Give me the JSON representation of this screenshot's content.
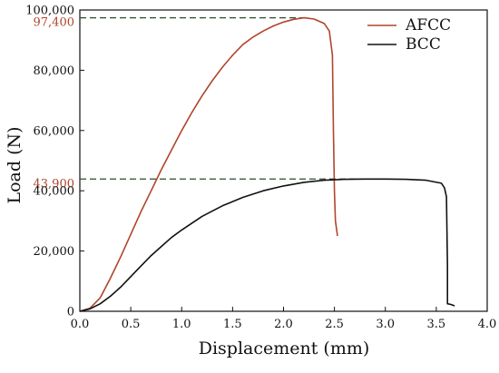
{
  "chart_data": {
    "type": "line",
    "xlabel": "Displacement (mm)",
    "ylabel": "Load (N)",
    "xlim": [
      0,
      4.0
    ],
    "ylim": [
      0,
      100000
    ],
    "x_ticks": [
      0.0,
      0.5,
      1.0,
      1.5,
      2.0,
      2.5,
      3.0,
      3.5,
      4.0
    ],
    "x_tick_labels": [
      "0.0",
      "0.5",
      "1.0",
      "1.5",
      "2.0",
      "2.5",
      "3.0",
      "3.5",
      "4.0"
    ],
    "y_ticks": [
      0,
      20000,
      40000,
      60000,
      80000,
      100000
    ],
    "y_tick_labels": [
      "0",
      "20,000",
      "40,000",
      "60,000",
      "80,000",
      "100,000"
    ],
    "grid": false,
    "legend_position": "top-right",
    "series": [
      {
        "name": "AFCC",
        "color": "#b0452c",
        "points": [
          [
            0.0,
            0
          ],
          [
            0.1,
            1000
          ],
          [
            0.2,
            4500
          ],
          [
            0.3,
            11000
          ],
          [
            0.4,
            18000
          ],
          [
            0.5,
            25500
          ],
          [
            0.6,
            33000
          ],
          [
            0.7,
            40000
          ],
          [
            0.8,
            47000
          ],
          [
            0.9,
            53500
          ],
          [
            1.0,
            60000
          ],
          [
            1.1,
            66000
          ],
          [
            1.2,
            71500
          ],
          [
            1.3,
            76500
          ],
          [
            1.4,
            81000
          ],
          [
            1.5,
            85000
          ],
          [
            1.6,
            88500
          ],
          [
            1.7,
            91000
          ],
          [
            1.8,
            93000
          ],
          [
            1.9,
            94700
          ],
          [
            2.0,
            96000
          ],
          [
            2.1,
            96900
          ],
          [
            2.2,
            97400
          ],
          [
            2.3,
            97000
          ],
          [
            2.4,
            95500
          ],
          [
            2.45,
            93000
          ],
          [
            2.48,
            85000
          ],
          [
            2.49,
            60000
          ],
          [
            2.5,
            40000
          ],
          [
            2.51,
            30000
          ],
          [
            2.53,
            25000
          ]
        ]
      },
      {
        "name": "BCC",
        "color": "#111111",
        "points": [
          [
            0.0,
            0
          ],
          [
            0.1,
            800
          ],
          [
            0.2,
            2500
          ],
          [
            0.3,
            5000
          ],
          [
            0.4,
            8000
          ],
          [
            0.5,
            11500
          ],
          [
            0.6,
            15000
          ],
          [
            0.7,
            18500
          ],
          [
            0.8,
            21500
          ],
          [
            0.9,
            24500
          ],
          [
            1.0,
            27000
          ],
          [
            1.2,
            31500
          ],
          [
            1.4,
            35000
          ],
          [
            1.6,
            37800
          ],
          [
            1.8,
            40000
          ],
          [
            2.0,
            41600
          ],
          [
            2.2,
            42800
          ],
          [
            2.4,
            43500
          ],
          [
            2.6,
            43800
          ],
          [
            2.8,
            43900
          ],
          [
            3.0,
            43900
          ],
          [
            3.2,
            43800
          ],
          [
            3.4,
            43500
          ],
          [
            3.55,
            42500
          ],
          [
            3.58,
            41000
          ],
          [
            3.6,
            38000
          ],
          [
            3.61,
            15000
          ],
          [
            3.61,
            2500
          ],
          [
            3.64,
            2300
          ],
          [
            3.68,
            1800
          ]
        ]
      }
    ],
    "annotations": [
      {
        "label": "97,400",
        "value": 97400,
        "x_end": 2.2,
        "color": "#b0452c"
      },
      {
        "label": "43,900",
        "value": 43900,
        "x_end": 3.0,
        "color": "#b0452c"
      }
    ]
  }
}
